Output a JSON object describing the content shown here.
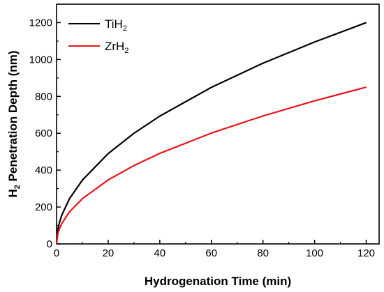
{
  "chart_data": {
    "type": "line",
    "xlabel": "Hydrogenation Time (min)",
    "ylabel": "H2 Penetration Depth (nm)",
    "ylabel_parts": {
      "main": "H",
      "sub": "2",
      "rest": " Penetration Depth (nm)"
    },
    "xlim": [
      0,
      125
    ],
    "ylim": [
      0,
      1300
    ],
    "xticks": [
      0,
      20,
      40,
      60,
      80,
      100,
      120
    ],
    "yticks": [
      0,
      200,
      400,
      600,
      800,
      1000,
      1200
    ],
    "grid": false,
    "legend_position": "top-left",
    "series": [
      {
        "name": "TiH2",
        "name_parts": {
          "main": "TiH",
          "sub": "2"
        },
        "color": "#000000",
        "x": [
          0,
          0.5,
          1,
          2,
          5,
          10,
          20,
          30,
          40,
          60,
          80,
          100,
          120
        ],
        "y": [
          0,
          78,
          110,
          155,
          245,
          346,
          490,
          600,
          693,
          849,
          980,
          1095,
          1200
        ]
      },
      {
        "name": "ZrH2",
        "name_parts": {
          "main": "ZrH",
          "sub": "2"
        },
        "color": "#e8141c",
        "x": [
          0,
          0.5,
          1,
          2,
          5,
          10,
          20,
          30,
          40,
          60,
          80,
          100,
          120
        ],
        "y": [
          0,
          55,
          78,
          110,
          174,
          245,
          347,
          425,
          491,
          601,
          694,
          776,
          850
        ]
      }
    ]
  }
}
